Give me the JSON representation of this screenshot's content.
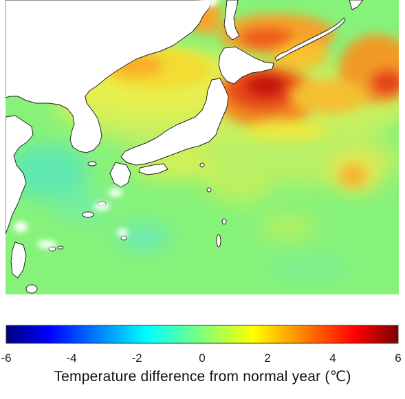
{
  "colorbar": {
    "label": "Temperature difference from normal year (℃)",
    "range": [
      -6,
      6
    ],
    "ticks": [
      "-6",
      "-4",
      "-2",
      "0",
      "2",
      "4",
      "6"
    ],
    "colormap": "jet"
  },
  "map": {
    "region": "Northwest Pacific around Japan",
    "background_color": "#7df27a",
    "land_color": "#ffffff",
    "coast_color": "#222222"
  }
}
